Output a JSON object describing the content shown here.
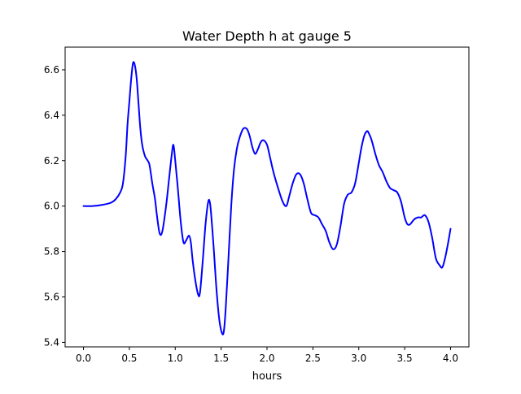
{
  "chart_data": {
    "type": "line",
    "title": "Water Depth h at gauge 5",
    "xlabel": "hours",
    "ylabel": "",
    "xlim": [
      -0.2,
      4.2
    ],
    "ylim": [
      5.38,
      6.7
    ],
    "xticks": [
      0.0,
      0.5,
      1.0,
      1.5,
      2.0,
      2.5,
      3.0,
      3.5,
      4.0
    ],
    "xtick_labels": [
      "0.0",
      "0.5",
      "1.0",
      "1.5",
      "2.0",
      "2.5",
      "3.0",
      "3.5",
      "4.0"
    ],
    "yticks": [
      5.4,
      5.6,
      5.8,
      6.0,
      6.2,
      6.4,
      6.6
    ],
    "ytick_labels": [
      "5.4",
      "5.6",
      "5.8",
      "6.0",
      "6.2",
      "6.4",
      "6.6"
    ],
    "grid": false,
    "series": [
      {
        "color": "#0000ff",
        "x": [
          0.0,
          0.1,
          0.2,
          0.3,
          0.35,
          0.4,
          0.43,
          0.46,
          0.48,
          0.5,
          0.52,
          0.54,
          0.56,
          0.58,
          0.6,
          0.62,
          0.64,
          0.67,
          0.7,
          0.72,
          0.75,
          0.78,
          0.8,
          0.83,
          0.86,
          0.9,
          0.93,
          0.96,
          0.98,
          1.0,
          1.03,
          1.06,
          1.09,
          1.12,
          1.15,
          1.17,
          1.19,
          1.22,
          1.25,
          1.27,
          1.3,
          1.33,
          1.36,
          1.38,
          1.4,
          1.42,
          1.45,
          1.48,
          1.51,
          1.53,
          1.55,
          1.58,
          1.61,
          1.64,
          1.67,
          1.7,
          1.74,
          1.78,
          1.81,
          1.84,
          1.87,
          1.9,
          1.93,
          1.96,
          2.0,
          2.03,
          2.07,
          2.12,
          2.17,
          2.21,
          2.24,
          2.28,
          2.32,
          2.36,
          2.4,
          2.44,
          2.48,
          2.52,
          2.56,
          2.6,
          2.64,
          2.68,
          2.72,
          2.76,
          2.8,
          2.84,
          2.88,
          2.92,
          2.96,
          3.0,
          3.03,
          3.06,
          3.09,
          3.11,
          3.14,
          3.18,
          3.22,
          3.26,
          3.3,
          3.34,
          3.38,
          3.42,
          3.46,
          3.5,
          3.53,
          3.56,
          3.6,
          3.64,
          3.68,
          3.72,
          3.76,
          3.8,
          3.84,
          3.88,
          3.91,
          3.94,
          3.97,
          4.0
        ],
        "values": [
          6.0,
          6.0,
          6.005,
          6.015,
          6.03,
          6.06,
          6.1,
          6.22,
          6.36,
          6.46,
          6.56,
          6.63,
          6.62,
          6.56,
          6.45,
          6.34,
          6.27,
          6.22,
          6.2,
          6.18,
          6.1,
          6.03,
          5.96,
          5.88,
          5.89,
          6.0,
          6.11,
          6.22,
          6.27,
          6.2,
          6.07,
          5.93,
          5.84,
          5.85,
          5.87,
          5.84,
          5.76,
          5.67,
          5.61,
          5.62,
          5.76,
          5.92,
          6.02,
          6.01,
          5.92,
          5.81,
          5.63,
          5.5,
          5.44,
          5.45,
          5.55,
          5.77,
          6.0,
          6.16,
          6.25,
          6.3,
          6.34,
          6.34,
          6.31,
          6.26,
          6.23,
          6.25,
          6.28,
          6.29,
          6.27,
          6.22,
          6.15,
          6.08,
          6.02,
          6.0,
          6.04,
          6.1,
          6.14,
          6.14,
          6.1,
          6.03,
          5.97,
          5.96,
          5.95,
          5.92,
          5.89,
          5.84,
          5.81,
          5.83,
          5.91,
          6.01,
          6.05,
          6.06,
          6.1,
          6.19,
          6.26,
          6.31,
          6.33,
          6.32,
          6.29,
          6.23,
          6.18,
          6.15,
          6.11,
          6.08,
          6.07,
          6.06,
          6.02,
          5.95,
          5.92,
          5.92,
          5.94,
          5.95,
          5.95,
          5.96,
          5.93,
          5.86,
          5.77,
          5.74,
          5.73,
          5.77,
          5.83,
          5.9
        ]
      }
    ]
  }
}
